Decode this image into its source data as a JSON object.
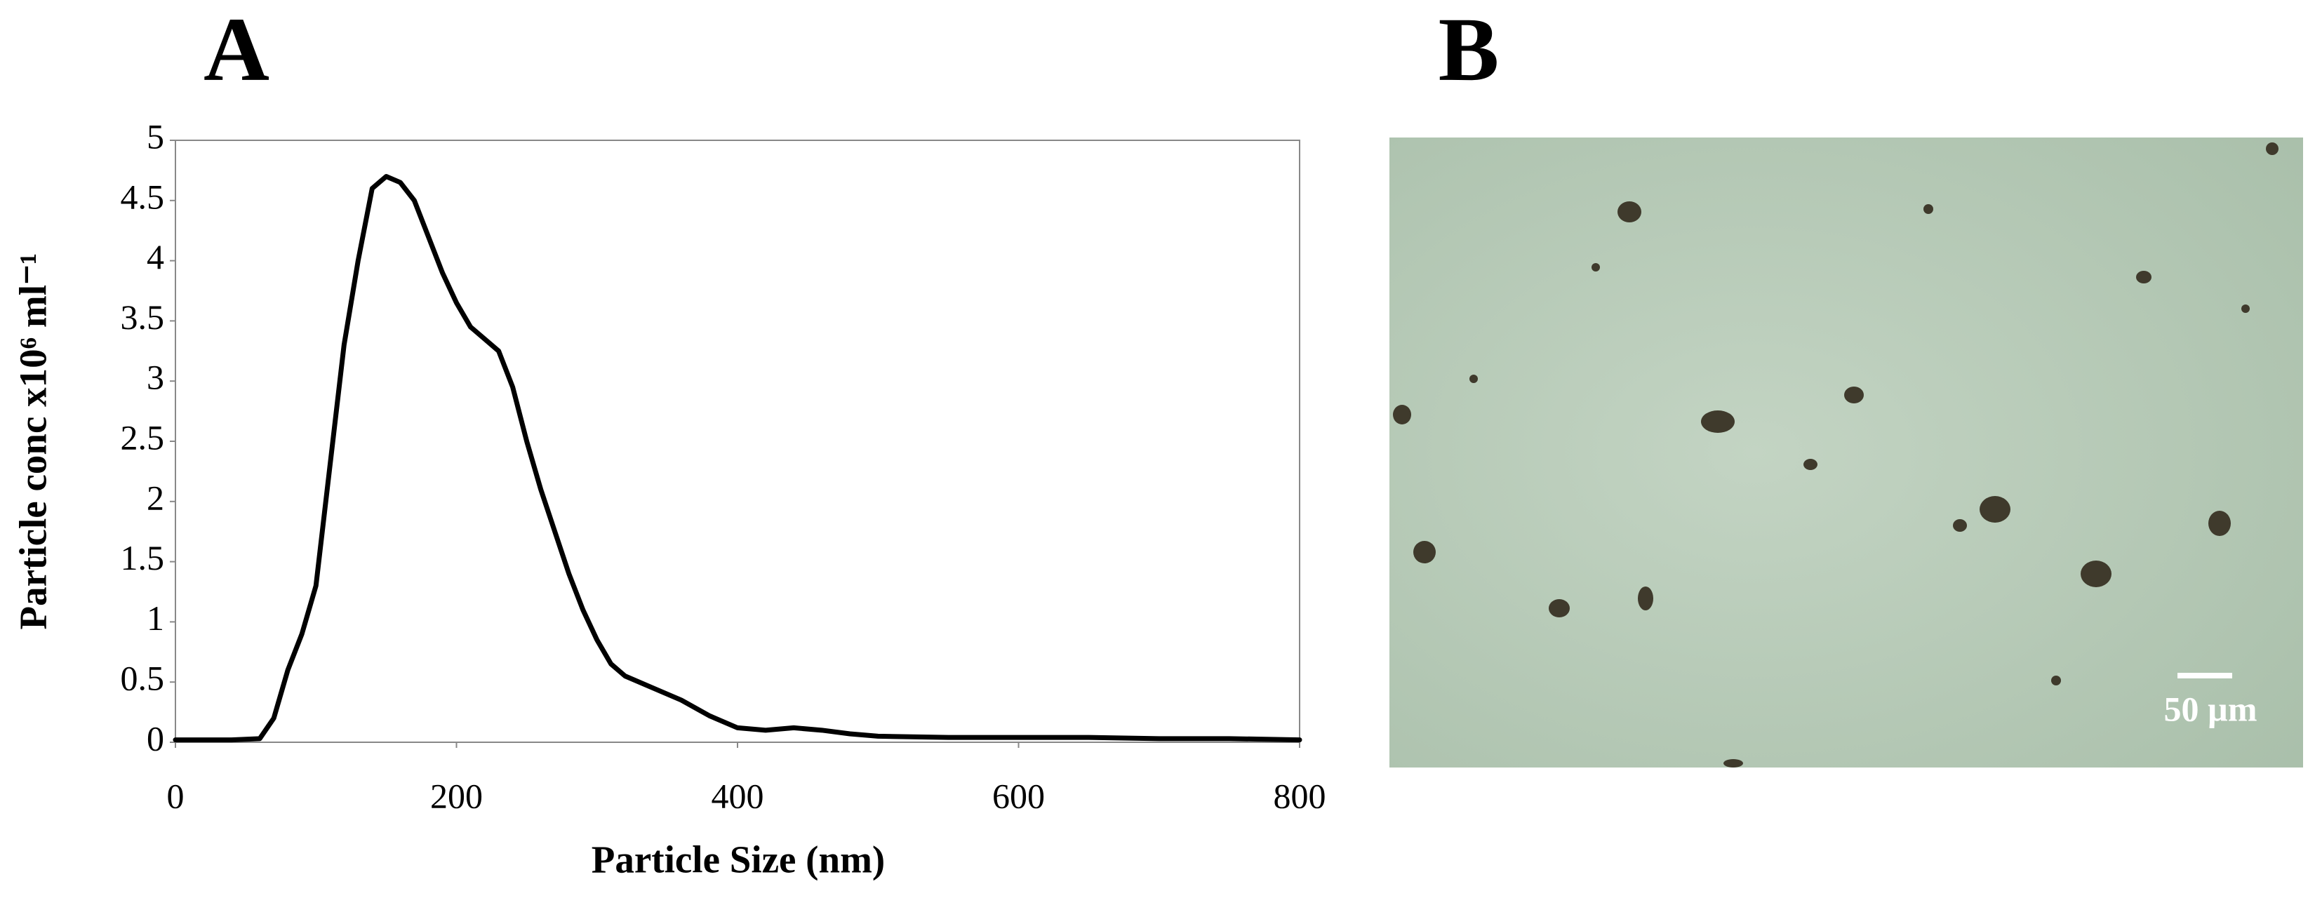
{
  "chart_data": {
    "type": "line",
    "x_label": "Particle Size (nm)",
    "y_label": "Particle conc x10⁶ ml⁻¹",
    "x": [
      0,
      20,
      40,
      60,
      70,
      80,
      90,
      100,
      110,
      120,
      130,
      140,
      150,
      160,
      170,
      180,
      190,
      200,
      210,
      220,
      230,
      240,
      250,
      260,
      270,
      280,
      290,
      300,
      310,
      320,
      340,
      360,
      380,
      400,
      420,
      440,
      460,
      480,
      500,
      550,
      600,
      650,
      700,
      750,
      800
    ],
    "values": [
      0.02,
      0.02,
      0.02,
      0.03,
      0.2,
      0.6,
      0.9,
      1.3,
      2.3,
      3.3,
      4.0,
      4.6,
      4.7,
      4.65,
      4.5,
      4.2,
      3.9,
      3.65,
      3.45,
      3.35,
      3.25,
      2.95,
      2.5,
      2.1,
      1.75,
      1.4,
      1.1,
      0.85,
      0.65,
      0.55,
      0.45,
      0.35,
      0.22,
      0.12,
      0.1,
      0.12,
      0.1,
      0.07,
      0.05,
      0.04,
      0.04,
      0.04,
      0.03,
      0.03,
      0.02
    ],
    "color": "#000000",
    "xlim": [
      0,
      800
    ],
    "xticks": [
      0,
      200,
      400,
      600,
      800
    ],
    "ylim": [
      0,
      5
    ],
    "yticks": [
      0,
      0.5,
      1,
      1.5,
      2,
      2.5,
      3,
      3.5,
      4,
      4.5,
      5
    ]
  },
  "panel_labels": [
    "A",
    "B"
  ],
  "micrograph": {
    "scale_bar": "50 µm"
  }
}
